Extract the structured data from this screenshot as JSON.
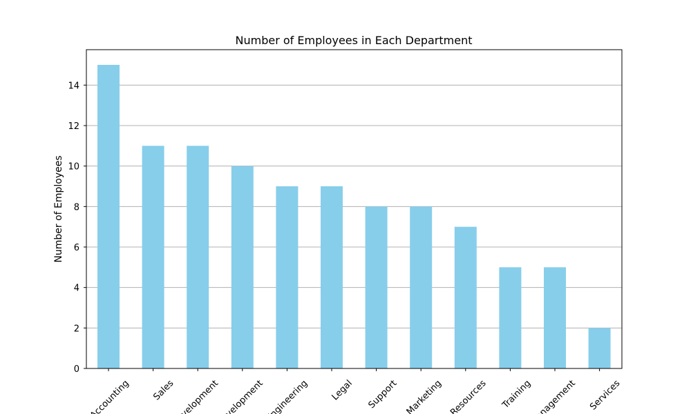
{
  "chart_data": {
    "type": "bar",
    "title": "Number of Employees in Each Department",
    "xlabel": "",
    "ylabel": "Number of Employees",
    "categories": [
      "Accounting",
      "Sales",
      "Development",
      "Development",
      "Engineering",
      "Legal",
      "Support",
      "Marketing",
      "Resources",
      "Training",
      "Management",
      "Services"
    ],
    "values": [
      15,
      11,
      11,
      10,
      9,
      9,
      8,
      8,
      7,
      5,
      5,
      2
    ],
    "ylim": [
      0,
      15.75
    ],
    "yticks": [
      0,
      2,
      4,
      6,
      8,
      10,
      12,
      14
    ],
    "grid": "y",
    "bar_color": "#87ceeb"
  }
}
